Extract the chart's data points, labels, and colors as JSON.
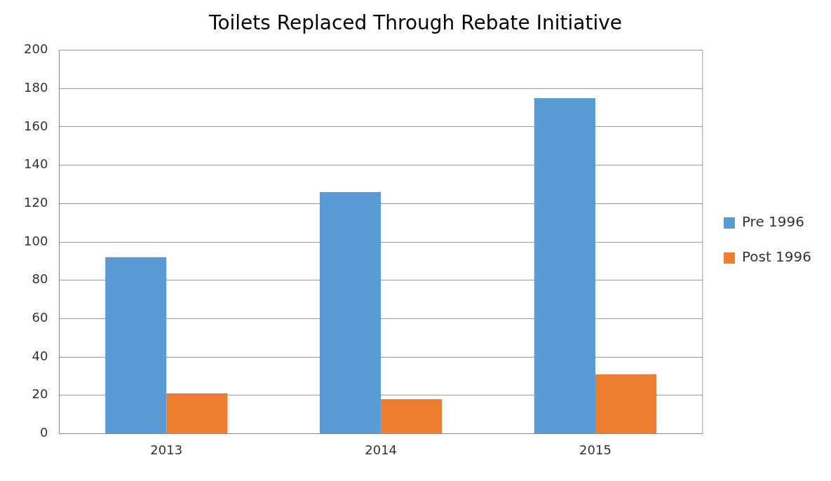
{
  "chart_data": {
    "type": "bar",
    "title": "Toilets Replaced Through Rebate Initiative",
    "categories": [
      "2013",
      "2014",
      "2015"
    ],
    "series": [
      {
        "name": "Pre 1996",
        "color": "#5b9bd5",
        "values": [
          92,
          126,
          175
        ]
      },
      {
        "name": "Post 1996",
        "color": "#ed7d31",
        "values": [
          21,
          18,
          31
        ]
      }
    ],
    "ylim": [
      0,
      200
    ],
    "yticks": [
      0,
      20,
      40,
      60,
      80,
      100,
      120,
      140,
      160,
      180,
      200
    ],
    "grid": "y",
    "legend": "right"
  }
}
